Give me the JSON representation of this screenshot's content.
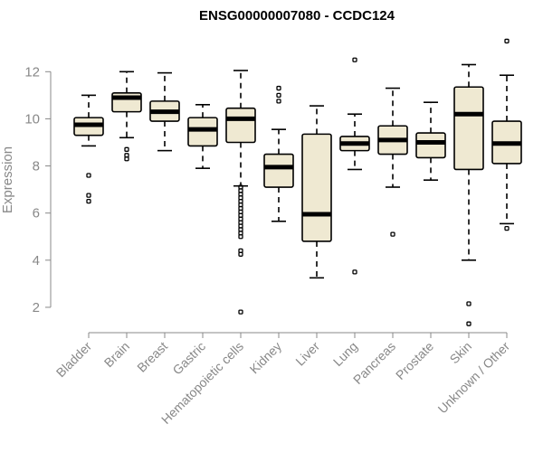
{
  "chart_data": {
    "type": "boxplot",
    "title": "ENSG00000007080 - CCDC124",
    "ylabel": "Expression",
    "xlabel": "",
    "ylim": [
      1,
      13.7
    ],
    "yticks": [
      2,
      4,
      6,
      8,
      10,
      12
    ],
    "box_color": "#efe9d2",
    "categories": [
      "Bladder",
      "Brain",
      "Breast",
      "Gastric",
      "Hematopoietic cells",
      "Kidney",
      "Liver",
      "Lung",
      "Pancreas",
      "Prostate",
      "Skin",
      "Unknown / Other"
    ],
    "boxes": [
      {
        "min": 8.85,
        "q1": 9.3,
        "median": 9.75,
        "q3": 10.05,
        "max": 11.0,
        "outliers": [
          7.6,
          6.75,
          6.5
        ]
      },
      {
        "min": 9.2,
        "q1": 10.3,
        "median": 10.9,
        "q3": 11.1,
        "max": 12.0,
        "outliers": [
          8.7,
          8.45,
          8.3
        ]
      },
      {
        "min": 8.65,
        "q1": 9.9,
        "median": 10.3,
        "q3": 10.75,
        "max": 11.95,
        "outliers": []
      },
      {
        "min": 7.9,
        "q1": 8.85,
        "median": 9.55,
        "q3": 10.05,
        "max": 10.6,
        "outliers": []
      },
      {
        "min": 7.15,
        "q1": 9.0,
        "median": 10.0,
        "q3": 10.45,
        "max": 12.05,
        "outliers": [
          7.1,
          6.95,
          6.8,
          6.65,
          6.5,
          6.35,
          6.2,
          6.05,
          5.9,
          5.75,
          5.6,
          5.45,
          5.3,
          5.15,
          5.0,
          4.4,
          4.25,
          1.8
        ]
      },
      {
        "min": 5.65,
        "q1": 7.1,
        "median": 7.95,
        "q3": 8.5,
        "max": 9.55,
        "outliers": [
          11.3,
          11.0,
          10.75
        ]
      },
      {
        "min": 3.25,
        "q1": 4.8,
        "median": 5.95,
        "q3": 9.35,
        "max": 10.55,
        "outliers": []
      },
      {
        "min": 7.85,
        "q1": 8.65,
        "median": 8.95,
        "q3": 9.25,
        "max": 10.2,
        "outliers": [
          12.5,
          3.5
        ]
      },
      {
        "min": 7.1,
        "q1": 8.5,
        "median": 9.1,
        "q3": 9.7,
        "max": 11.3,
        "outliers": [
          5.1
        ]
      },
      {
        "min": 7.4,
        "q1": 8.35,
        "median": 9.0,
        "q3": 9.4,
        "max": 10.7,
        "outliers": []
      },
      {
        "min": 4.0,
        "q1": 7.85,
        "median": 10.2,
        "q3": 11.35,
        "max": 12.3,
        "outliers": [
          2.15,
          1.3
        ]
      },
      {
        "min": 5.55,
        "q1": 8.1,
        "median": 8.95,
        "q3": 9.9,
        "max": 11.85,
        "outliers": [
          13.3,
          5.35
        ]
      }
    ]
  }
}
